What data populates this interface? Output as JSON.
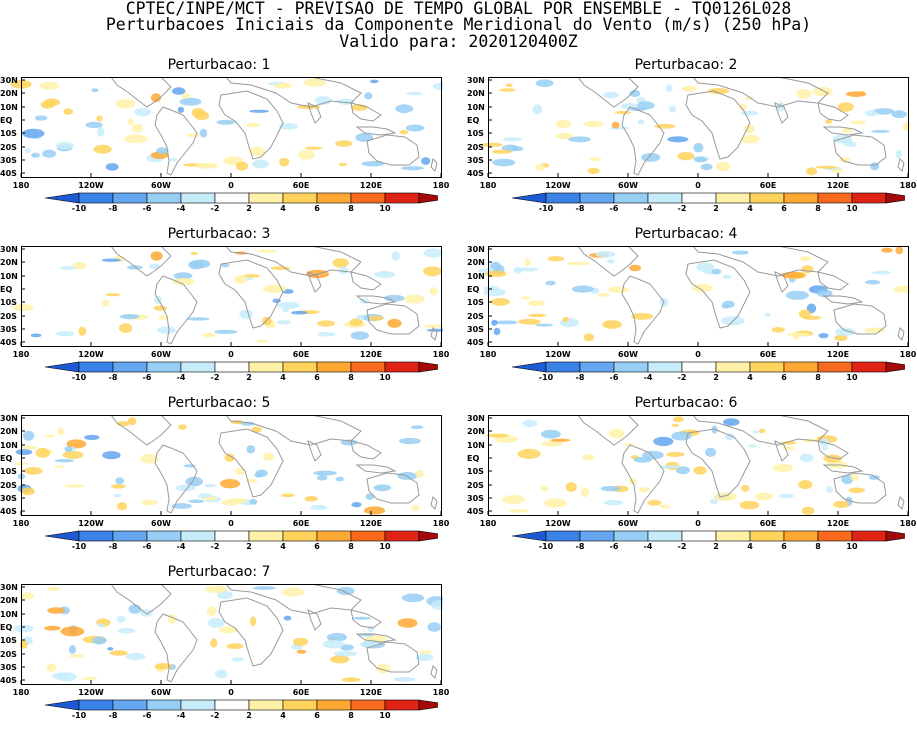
{
  "header": {
    "line1": "CPTEC/INPE/MCT - PREVISAO DE TEMPO GLOBAL POR ENSEMBLE - TQ0126L028",
    "line2": "Perturbacoes Iniciais da Componente Meridional do Vento (m/s) (250 hPa)",
    "line3": "Valido para: 2020120400Z"
  },
  "lat_labels": [
    "30N",
    "20N",
    "10N",
    "EQ",
    "10S",
    "20S",
    "30S",
    "40S"
  ],
  "lon_labels": [
    "180",
    "120W",
    "60W",
    "0",
    "60E",
    "120E",
    "180"
  ],
  "colorbar": {
    "labels": [
      "-10",
      "-8",
      "-6",
      "-4",
      "-2",
      "2",
      "4",
      "6",
      "8",
      "10"
    ],
    "colors": [
      "#1c5ad6",
      "#3a82e8",
      "#64a6f0",
      "#96cef4",
      "#c6ecfa",
      "#ffffff",
      "#fff2a8",
      "#ffd25c",
      "#ffa834",
      "#f76a1e",
      "#e02414",
      "#a50a0a"
    ]
  },
  "panels": [
    {
      "title": "Perturbacao: 1"
    },
    {
      "title": "Perturbacao: 2"
    },
    {
      "title": "Perturbacao: 3"
    },
    {
      "title": "Perturbacao: 4"
    },
    {
      "title": "Perturbacao: 5"
    },
    {
      "title": "Perturbacao: 6"
    },
    {
      "title": "Perturbacao: 7"
    }
  ]
}
